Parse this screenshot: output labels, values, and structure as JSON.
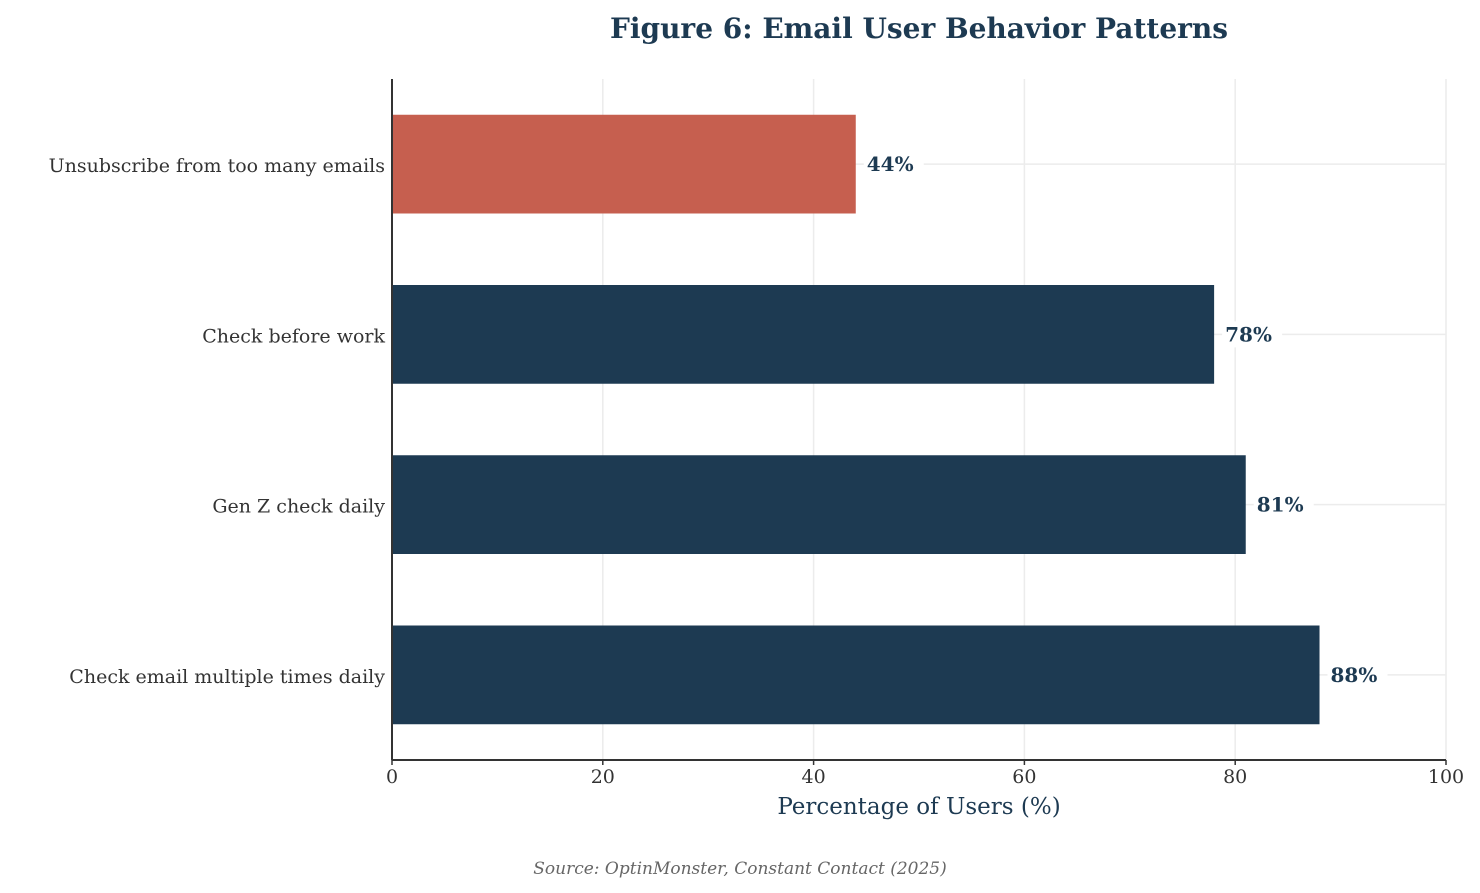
{
  "chart_data": {
    "type": "bar",
    "orientation": "horizontal",
    "title": "Figure 6: Email User Behavior Patterns",
    "xlabel": "Percentage of Users (%)",
    "ylabel": "",
    "xlim": [
      0,
      100
    ],
    "xticks": [
      "0",
      "20",
      "40",
      "60",
      "80",
      "100"
    ],
    "grid": true,
    "categories": [
      "Check email multiple times daily",
      "Gen Z check daily",
      "Check before work",
      "Unsubscribe from too many emails"
    ],
    "values": [
      88,
      81,
      78,
      44
    ],
    "data_labels": [
      "88%",
      "81%",
      "78%",
      "44%"
    ],
    "bar_colors": [
      "#1d3a52",
      "#1d3a52",
      "#1d3a52",
      "#c65f4f"
    ],
    "source": "Source: OptinMonster, Constant Contact (2025)"
  }
}
